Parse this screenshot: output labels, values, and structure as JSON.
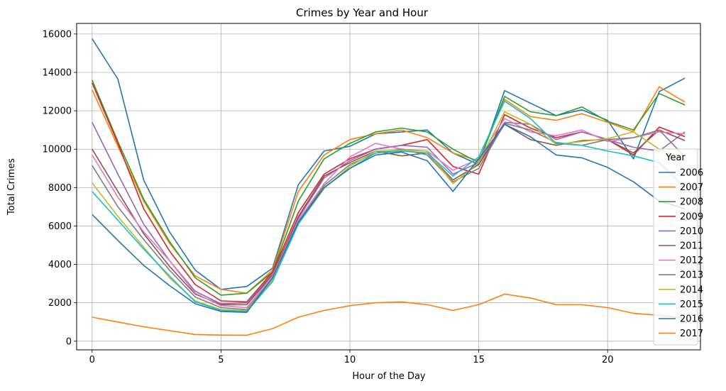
{
  "chart_data": {
    "type": "line",
    "title": "Crimes by Year and Hour",
    "xlabel": "Hour of the Day",
    "ylabel": "Total Crimes",
    "xlim": [
      -0.6,
      23.6
    ],
    "ylim": [
      -450,
      16550
    ],
    "x_ticks": [
      0,
      5,
      10,
      15,
      20
    ],
    "y_ticks": [
      0,
      2000,
      4000,
      6000,
      8000,
      10000,
      12000,
      14000,
      16000
    ],
    "grid": true,
    "legend_title": "Year",
    "legend_position": "right",
    "x": [
      0,
      1,
      2,
      3,
      4,
      5,
      6,
      7,
      8,
      9,
      10,
      11,
      12,
      13,
      14,
      15,
      16,
      17,
      18,
      19,
      20,
      21,
      22,
      23
    ],
    "series": [
      {
        "name": "2006",
        "color": "#1f77b4",
        "values": [
          15750,
          13650,
          8400,
          5700,
          3700,
          2700,
          2850,
          3800,
          8150,
          9900,
          10150,
          10800,
          10900,
          11000,
          9800,
          9200,
          13050,
          12400,
          11750,
          12050,
          11500,
          9500,
          13000,
          13700
        ]
      },
      {
        "name": "2007",
        "color": "#ff7f0e",
        "values": [
          13100,
          10150,
          7300,
          5100,
          3400,
          2700,
          2500,
          3700,
          7800,
          9700,
          10500,
          10800,
          11000,
          10600,
          9800,
          9400,
          12600,
          11700,
          11500,
          11850,
          11400,
          10900,
          13250,
          12450
        ]
      },
      {
        "name": "2008",
        "color": "#2ca02c",
        "values": [
          13600,
          10400,
          7400,
          5200,
          3300,
          2400,
          2500,
          3600,
          7300,
          9500,
          10300,
          10900,
          11100,
          10900,
          10000,
          9300,
          12750,
          11950,
          11750,
          12200,
          11450,
          11000,
          12900,
          12300
        ]
      },
      {
        "name": "2009",
        "color": "#d62728",
        "values": [
          13450,
          10300,
          6900,
          4700,
          2950,
          2100,
          2050,
          3600,
          6700,
          8700,
          9500,
          10000,
          10200,
          10500,
          9100,
          8700,
          11800,
          11100,
          10600,
          10900,
          10500,
          9700,
          11150,
          10650
        ]
      },
      {
        "name": "2010",
        "color": "#9467bd",
        "values": [
          11400,
          8700,
          6100,
          4200,
          2600,
          1950,
          2000,
          3500,
          6400,
          8500,
          9400,
          10000,
          10200,
          10100,
          8700,
          9300,
          11400,
          11300,
          10500,
          10900,
          10500,
          10100,
          9900,
          10900
        ]
      },
      {
        "name": "2011",
        "color": "#8c564b",
        "values": [
          10000,
          7800,
          5600,
          3900,
          2450,
          1900,
          1900,
          3450,
          6500,
          8600,
          9300,
          9900,
          9650,
          9800,
          8400,
          9200,
          11300,
          10500,
          10200,
          10450,
          10500,
          9800,
          11000,
          10450
        ]
      },
      {
        "name": "2012",
        "color": "#e377c2",
        "values": [
          9700,
          7500,
          5700,
          4200,
          2500,
          1850,
          1750,
          3400,
          6300,
          8200,
          9600,
          10300,
          10000,
          9900,
          8900,
          9500,
          11600,
          10900,
          10700,
          11000,
          10400,
          10600,
          10900,
          10800
        ]
      },
      {
        "name": "2013",
        "color": "#7f7f7f",
        "values": [
          9150,
          7000,
          5300,
          3700,
          2300,
          1750,
          1650,
          3300,
          6200,
          8100,
          9200,
          9800,
          10000,
          9700,
          8300,
          9000,
          11350,
          11000,
          10350,
          10200,
          10500,
          10600,
          11000,
          9600
        ]
      },
      {
        "name": "2014",
        "color": "#bcbd22",
        "values": [
          8250,
          6500,
          4900,
          3300,
          2100,
          1650,
          1600,
          3200,
          6100,
          7950,
          9100,
          9900,
          9950,
          9900,
          8200,
          9300,
          11950,
          11300,
          10250,
          10400,
          10550,
          10900,
          10000,
          9500
        ]
      },
      {
        "name": "2015",
        "color": "#17becf",
        "values": [
          7800,
          6300,
          4800,
          3400,
          2050,
          1600,
          1550,
          3100,
          6100,
          8000,
          9000,
          9800,
          9900,
          9800,
          8600,
          9600,
          12500,
          11600,
          10300,
          10200,
          9900,
          9650,
          9300,
          8000
        ]
      },
      {
        "name": "2016",
        "color": "#1f77b4",
        "values": [
          6600,
          5250,
          3950,
          2900,
          1950,
          1550,
          1500,
          3300,
          6200,
          8000,
          9000,
          9700,
          9850,
          9400,
          7800,
          9500,
          11300,
          10650,
          9700,
          9550,
          9050,
          8300,
          7300,
          6900
        ]
      },
      {
        "name": "2017",
        "color": "#ff7f0e",
        "values": [
          1250,
          1000,
          750,
          550,
          350,
          320,
          310,
          650,
          1250,
          1600,
          1850,
          2000,
          2050,
          1900,
          1600,
          1900,
          2450,
          2250,
          1900,
          1900,
          1750,
          1450,
          1350,
          1200
        ]
      }
    ]
  }
}
